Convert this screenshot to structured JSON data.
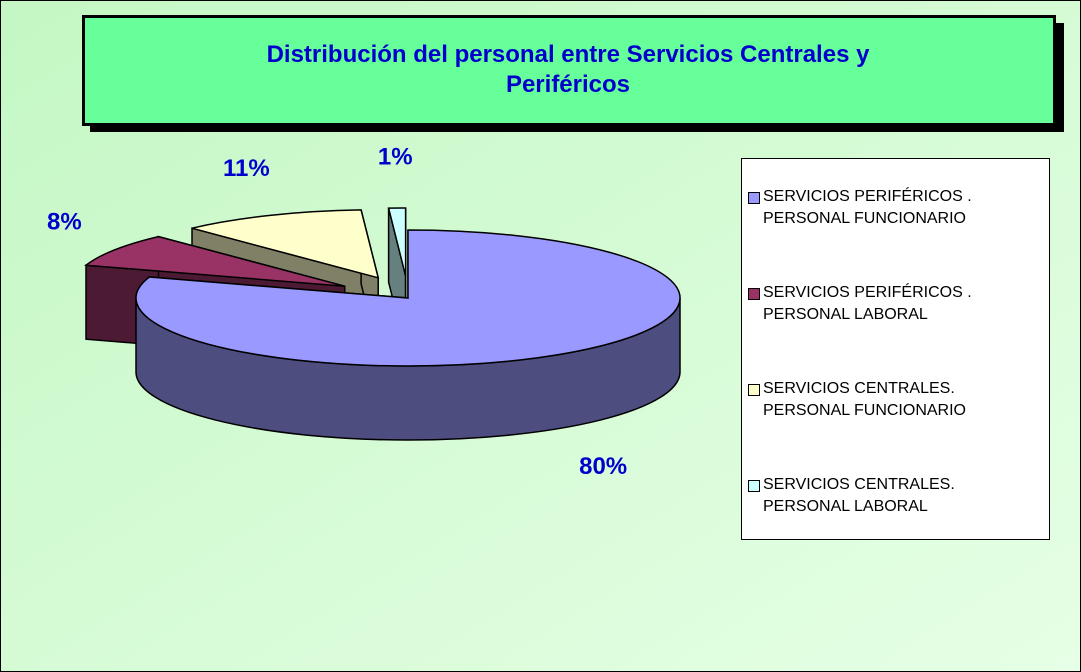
{
  "chart_data": {
    "type": "pie",
    "title": "Distribución del personal entre Servicios Centrales y Periféricos",
    "categories": [
      "SERVICIOS PERIFÉRICOS . PERSONAL FUNCIONARIO",
      "SERVICIOS PERIFÉRICOS . PERSONAL LABORAL",
      "SERVICIOS CENTRALES. PERSONAL FUNCIONARIO",
      "SERVICIOS CENTRALES. PERSONAL LABORAL"
    ],
    "values": [
      80,
      8,
      11,
      1
    ],
    "value_labels": [
      "80%",
      "8%",
      "11%",
      "1%"
    ],
    "colors": [
      "#9999ff",
      "#993366",
      "#ffffcc",
      "#ccffff"
    ],
    "legend": "right"
  }
}
